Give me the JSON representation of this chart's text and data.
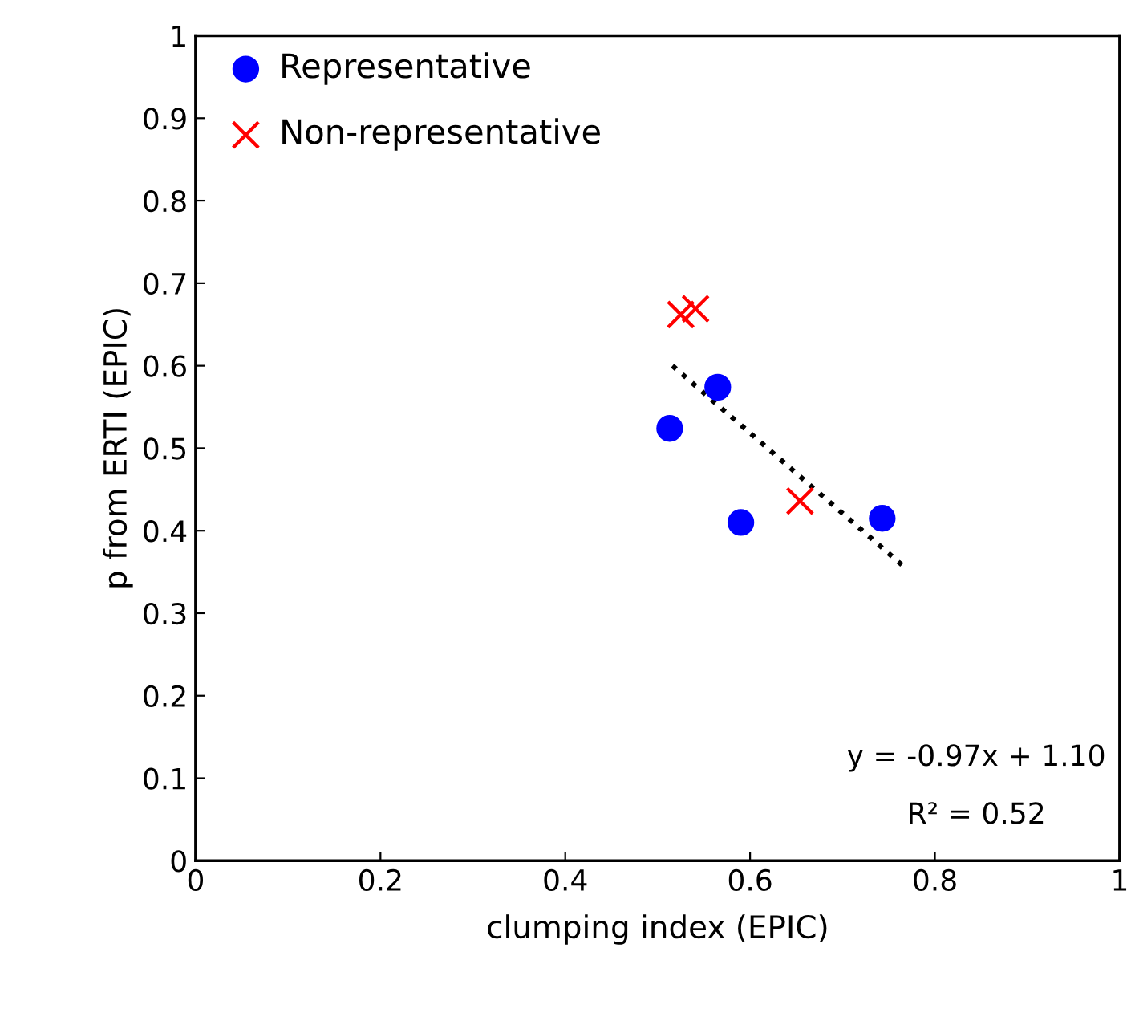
{
  "chart_data": {
    "type": "scatter",
    "xlabel": "clumping index (EPIC)",
    "ylabel": "p from ERTI (EPIC)",
    "xlim": [
      0,
      1
    ],
    "xticks": [
      0,
      0.2,
      0.4,
      0.6,
      0.8,
      1
    ],
    "ylim": [
      0,
      1
    ],
    "yticks": [
      0,
      0.1,
      0.2,
      0.3,
      0.4,
      0.5,
      0.6,
      0.7,
      0.8,
      0.9,
      1
    ],
    "grid": false,
    "legend": "top left",
    "series": [
      {
        "name": "Representative",
        "color": "#0000ff",
        "marker": "circle",
        "x": [
          0.565,
          0.513,
          0.59,
          0.743
        ],
        "values": [
          0.574,
          0.524,
          0.41,
          0.415
        ]
      },
      {
        "name": "Non-representative",
        "color": "#ff0000",
        "marker": "cross",
        "x": [
          0.525,
          0.541,
          0.654
        ],
        "values": [
          0.662,
          0.669,
          0.436
        ]
      },
      {
        "type": "line",
        "color": "#000000",
        "line_style": "dotted",
        "marker": "none",
        "x": [
          0.516,
          0.769
        ],
        "values": [
          0.6,
          0.354
        ]
      }
    ],
    "annotations": [
      "y = -0.97x + 1.10",
      "R² = 0.52"
    ]
  }
}
